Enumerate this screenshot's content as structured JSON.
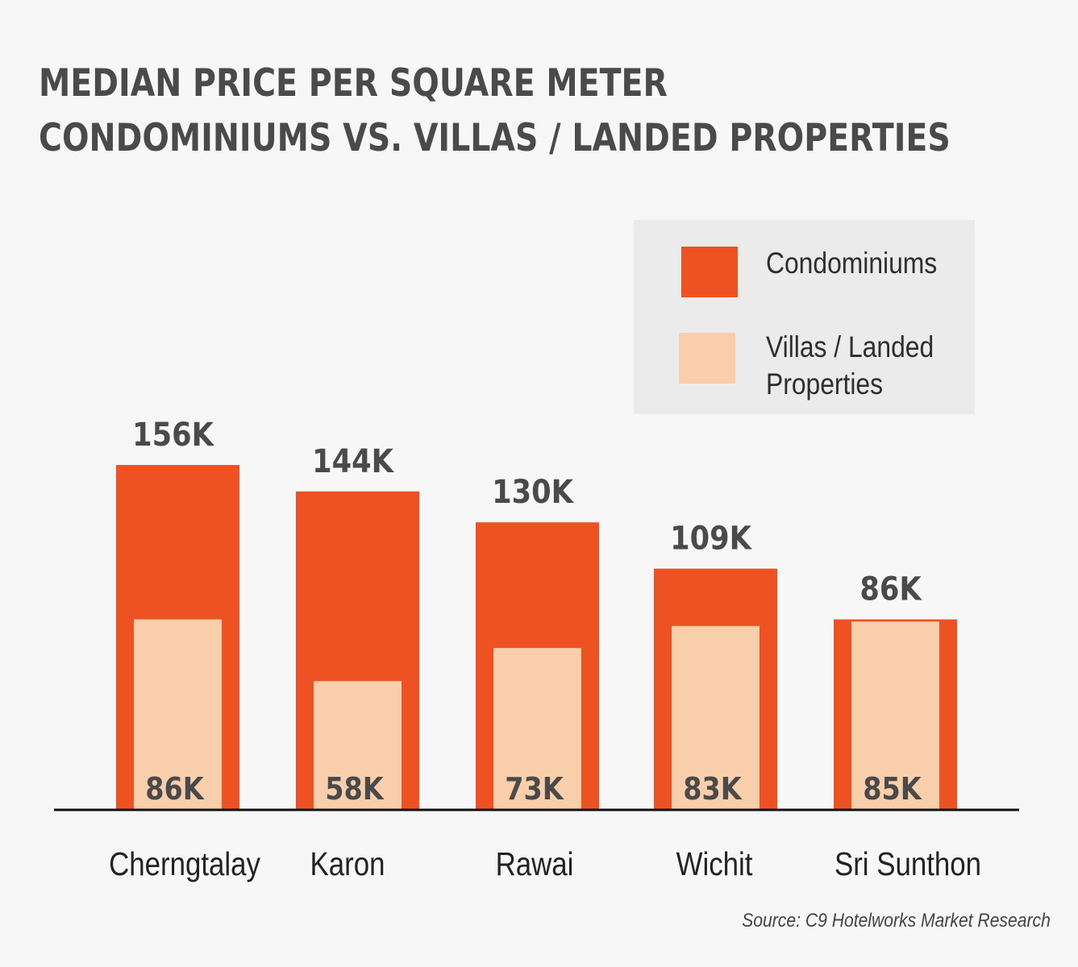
{
  "title": {
    "line1": "MEDIAN PRICE PER SQUARE METER",
    "line2": "CONDOMINIUMS VS. VILLAS / LANDED PROPERTIES"
  },
  "legend": {
    "position": "top-right",
    "items": [
      {
        "label": "Condominiums",
        "color": "#ef5222"
      },
      {
        "label_line1": "Villas / Landed",
        "label_line2": "Properties",
        "color": "#f9ceab"
      }
    ]
  },
  "source": "Source: C9 Hotelworks Market Research",
  "chart_data": {
    "type": "bar",
    "grid": false,
    "categories": [
      "Cherngtalay",
      "Karon",
      "Rawai",
      "Wichit",
      "Sri Sunthon"
    ],
    "series": [
      {
        "name": "Condominiums",
        "color": "#ef5222",
        "values": [
          156,
          144,
          130,
          109,
          86
        ],
        "labels": [
          "156K",
          "144K",
          "130K",
          "109K",
          "86K"
        ]
      },
      {
        "name": "Villas / Landed Properties",
        "color": "#f9ceab",
        "values": [
          86,
          58,
          73,
          83,
          85
        ],
        "labels": [
          "86K",
          "58K",
          "73K",
          "83K",
          "85K"
        ]
      }
    ],
    "ylim": [
      0,
      156
    ]
  }
}
